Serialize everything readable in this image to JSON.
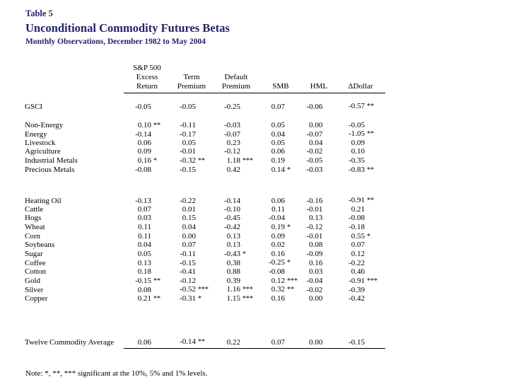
{
  "title": {
    "table_label": "Table 5",
    "heading": "Unconditional Commodity Futures Betas",
    "subtitle": "Monthly Observations, December 1982 to May 2004"
  },
  "colors": {
    "title_text": "#23236B",
    "body_text": "#000000",
    "background": "#FFFFFF"
  },
  "table": {
    "headers": [
      {
        "name": "sp500-excess-return",
        "lines": [
          "S&P 500",
          "Excess",
          "Return"
        ]
      },
      {
        "name": "term-premium",
        "lines": [
          "Term",
          "Premium"
        ]
      },
      {
        "name": "default-premium",
        "lines": [
          "Default",
          "Premium"
        ]
      },
      {
        "name": "smb",
        "lines": [
          "SMB"
        ]
      },
      {
        "name": "hml",
        "lines": [
          "HML"
        ]
      },
      {
        "name": "delta-dollar",
        "lines": [
          "ΔDollar"
        ]
      }
    ],
    "groups": [
      {
        "rows": [
          {
            "label": "GSCI",
            "values": [
              "-0.05",
              "-0.05",
              "-0.25",
              "0.07",
              "-0.06",
              "-0.57"
            ],
            "stars": [
              "",
              "",
              "",
              "",
              "",
              "**"
            ]
          }
        ]
      },
      {
        "rows": [
          {
            "label": "Non-Energy",
            "values": [
              "0.10",
              "-0.11",
              "-0.03",
              "0.05",
              "0.00",
              "-0.05"
            ],
            "stars": [
              "**",
              "",
              "",
              "",
              "",
              ""
            ]
          },
          {
            "label": "Energy",
            "values": [
              "-0.14",
              "-0.17",
              "-0.07",
              "0.04",
              "-0.07",
              "-1.05"
            ],
            "stars": [
              "",
              "",
              "",
              "",
              "",
              "**"
            ]
          },
          {
            "label": "Livestock",
            "values": [
              "0.06",
              "0.05",
              "0.23",
              "0.05",
              "0.04",
              "0.09"
            ],
            "stars": [
              "",
              "",
              "",
              "",
              "",
              ""
            ]
          },
          {
            "label": "Agriculture",
            "values": [
              "0.09",
              "-0.01",
              "-0.12",
              "0.06",
              "-0.02",
              "0.10"
            ],
            "stars": [
              "",
              "",
              "",
              "",
              "",
              ""
            ]
          },
          {
            "label": "Industrial Metals",
            "values": [
              "0.16",
              "-0.32",
              "1.18",
              "0.19",
              "-0.05",
              "-0.35"
            ],
            "stars": [
              "*",
              "**",
              "***",
              "",
              "",
              ""
            ]
          },
          {
            "label": "Precious Metals",
            "values": [
              "-0.08",
              "-0.15",
              "0.42",
              "0.14",
              "-0.03",
              "-0.83"
            ],
            "stars": [
              "",
              "",
              "",
              "*",
              "",
              "**"
            ]
          }
        ]
      },
      {
        "rows": [
          {
            "label": "Heating Oil",
            "values": [
              "-0.13",
              "-0.22",
              "-0.14",
              "0.06",
              "-0.16",
              "-0.91"
            ],
            "stars": [
              "",
              "",
              "",
              "",
              "",
              "**"
            ]
          },
          {
            "label": "Cattle",
            "values": [
              "0.07",
              "0.01",
              "-0.10",
              "0.11",
              "-0.01",
              "0.21"
            ],
            "stars": [
              "",
              "",
              "",
              "",
              "",
              ""
            ]
          },
          {
            "label": "Hogs",
            "values": [
              "0.03",
              "0.15",
              "-0.45",
              "-0.04",
              "0.13",
              "-0.08"
            ],
            "stars": [
              "",
              "",
              "",
              "",
              "",
              ""
            ]
          },
          {
            "label": "Wheat",
            "values": [
              "0.11",
              "0.04",
              "-0.42",
              "0.19",
              "-0.12",
              "-0.18"
            ],
            "stars": [
              "",
              "",
              "",
              "*",
              "",
              ""
            ]
          },
          {
            "label": "Corn",
            "values": [
              "0.11",
              "0.00",
              "0.13",
              "0.09",
              "-0.01",
              "0.55"
            ],
            "stars": [
              "",
              "",
              "",
              "",
              "",
              "*"
            ]
          },
          {
            "label": "Soybeans",
            "values": [
              "0.04",
              "0.07",
              "0.13",
              "0.02",
              "0.08",
              "0.07"
            ],
            "stars": [
              "",
              "",
              "",
              "",
              "",
              ""
            ]
          },
          {
            "label": "Sugar",
            "values": [
              "0.05",
              "-0.11",
              "-0.43",
              "0.16",
              "-0.09",
              "0.12"
            ],
            "stars": [
              "",
              "",
              "*",
              "",
              "",
              ""
            ]
          },
          {
            "label": "Coffee",
            "values": [
              "0.13",
              "-0.15",
              "0.38",
              "-0.25",
              "0.16",
              "-0.22"
            ],
            "stars": [
              "",
              "",
              "",
              "*",
              "",
              ""
            ]
          },
          {
            "label": "Cotton",
            "values": [
              "0.18",
              "-0.41",
              "0.88",
              "-0.08",
              "0.03",
              "0.46"
            ],
            "stars": [
              "",
              "",
              "",
              "",
              "",
              ""
            ]
          },
          {
            "label": "Gold",
            "values": [
              "-0.15",
              "-0.12",
              "0.39",
              "0.12",
              "-0.04",
              "-0.91"
            ],
            "stars": [
              "**",
              "",
              "",
              "***",
              "",
              "***"
            ]
          },
          {
            "label": "Silver",
            "values": [
              "0.08",
              "-0.52",
              "1.16",
              "0.32",
              "-0.02",
              "-0.39"
            ],
            "stars": [
              "",
              "***",
              "***",
              "**",
              "",
              ""
            ]
          },
          {
            "label": "Copper",
            "values": [
              "0.21",
              "-0.31",
              "1.15",
              "0.16",
              "0.00",
              "-0.42"
            ],
            "stars": [
              "**",
              "*",
              "***",
              "",
              "",
              ""
            ]
          }
        ]
      },
      {
        "rows": [
          {
            "label": "Twelve Commodity Average",
            "values": [
              "0.06",
              "-0.14",
              "0.22",
              "0.07",
              "0.00",
              "-0.15"
            ],
            "stars": [
              "",
              "**",
              "",
              "",
              "",
              ""
            ]
          }
        ]
      }
    ]
  },
  "note": "Note: *, **, *** significant at the 10%, 5% and 1% levels."
}
